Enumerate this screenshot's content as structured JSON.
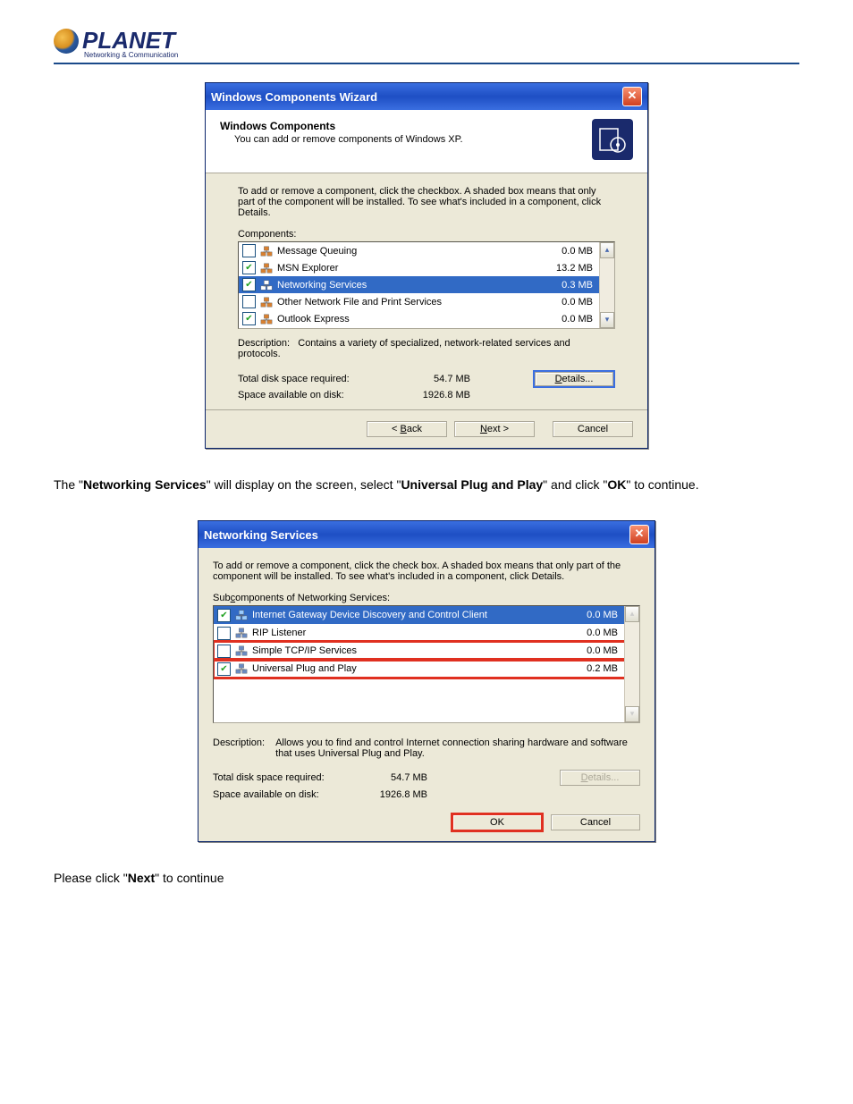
{
  "logo": {
    "name": "PLANET",
    "sub": "Networking & Communication"
  },
  "dialog1": {
    "title": "Windows Components Wizard",
    "header_title": "Windows Components",
    "header_sub": "You can add or remove components of Windows XP.",
    "instructions": "To add or remove a component, click the checkbox.  A shaded box means that only part of the component will be installed.  To see what's included in a component, click Details.",
    "list_label": "Components:",
    "items": [
      {
        "checked": false,
        "selected": false,
        "label": "Message Queuing",
        "size": "0.0 MB"
      },
      {
        "checked": true,
        "selected": false,
        "label": "MSN Explorer",
        "size": "13.2 MB"
      },
      {
        "checked": true,
        "selected": true,
        "label": "Networking Services",
        "size": "0.3 MB"
      },
      {
        "checked": false,
        "selected": false,
        "label": "Other Network File and Print Services",
        "size": "0.0 MB"
      },
      {
        "checked": true,
        "selected": false,
        "label": "Outlook Express",
        "size": "0.0 MB"
      }
    ],
    "description_label": "Description:",
    "description": "Contains a variety of specialized, network-related services and protocols.",
    "total_label": "Total disk space required:",
    "total_value": "54.7 MB",
    "avail_label": "Space available on disk:",
    "avail_value": "1926.8 MB",
    "details": "Details...",
    "back": "< Back",
    "next": "Next >",
    "cancel": "Cancel"
  },
  "paragraph1_prefix": "The \"",
  "paragraph1_b1": "Networking Services",
  "paragraph1_mid1": "\" will display on the screen, select \"",
  "paragraph1_b2": "Universal Plug and Play",
  "paragraph1_mid2": "\" and click \"",
  "paragraph1_b3": "OK",
  "paragraph1_suffix": "\" to continue.",
  "dialog2": {
    "title": "Networking Services",
    "instructions": "To add or remove a component, click the check box. A shaded box means that only part of the component will be installed. To see what's included in a component, click Details.",
    "list_label": "Subcomponents of Networking Services:",
    "items": [
      {
        "checked": true,
        "selected": true,
        "highlight": false,
        "label": "Internet Gateway Device Discovery and Control Client",
        "size": "0.0 MB"
      },
      {
        "checked": false,
        "selected": false,
        "highlight": false,
        "label": "RIP Listener",
        "size": "0.0 MB"
      },
      {
        "checked": false,
        "selected": false,
        "highlight": true,
        "label": "Simple TCP/IP Services",
        "size": "0.0 MB"
      },
      {
        "checked": true,
        "selected": false,
        "highlight": true,
        "label": "Universal Plug and Play",
        "size": "0.2 MB"
      }
    ],
    "description_label": "Description:",
    "description": "Allows you to find and control Internet connection sharing hardware and software that uses Universal Plug and Play.",
    "total_label": "Total disk space required:",
    "total_value": "54.7 MB",
    "avail_label": "Space available on disk:",
    "avail_value": "1926.8 MB",
    "details": "Details...",
    "ok": "OK",
    "cancel": "Cancel"
  },
  "paragraph2_prefix": "Please click \"",
  "paragraph2_b": "Next",
  "paragraph2_suffix": "\" to continue"
}
